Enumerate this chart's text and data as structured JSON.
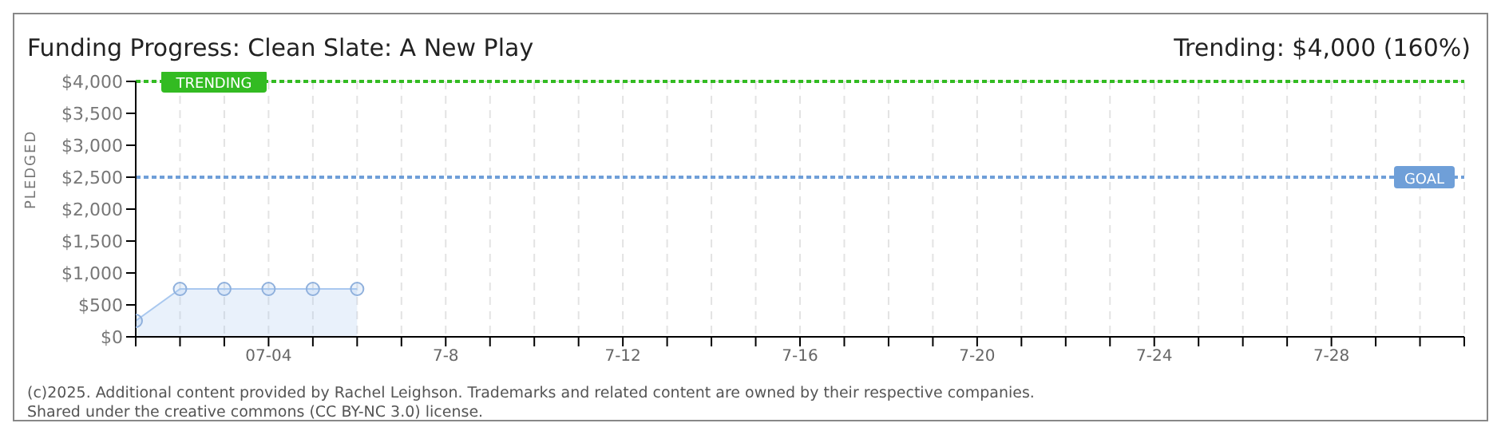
{
  "chart_data": {
    "type": "area",
    "title": "Funding Progress: Clean Slate: A New Play",
    "ylabel": "PLEDGED",
    "annotations": [
      "Trending: $4,000 (160%)",
      "(c)2025. Additional content provided by Rachel Leighson. Trademarks and related content are owned by their respective companies.",
      "Shared under the creative commons (CC BY-NC 3.0) license."
    ],
    "x": [
      "--07-01",
      "--07-02",
      "--07-03",
      "--07-04",
      "--07-05",
      "--07-06"
    ],
    "series": [
      {
        "color": "#a9c8ef",
        "values": [
          250,
          750,
          750,
          750,
          750,
          750
        ]
      }
    ],
    "xlim": [
      "--07-01",
      "--07-31"
    ],
    "xticks": [
      {
        "value": "--07-01",
        "label": null
      },
      {
        "value": "--07-02",
        "label": null
      },
      {
        "value": "--07-03",
        "label": null
      },
      {
        "value": "--07-04",
        "label": "07-04"
      },
      {
        "value": "--07-05",
        "label": null
      },
      {
        "value": "--07-06",
        "label": null
      },
      {
        "value": "--07-07",
        "label": null
      },
      {
        "value": "--07-08",
        "label": "7-8"
      },
      {
        "value": "--07-09",
        "label": null
      },
      {
        "value": "--07-10",
        "label": null
      },
      {
        "value": "--07-11",
        "label": null
      },
      {
        "value": "--07-12",
        "label": "7-12"
      },
      {
        "value": "--07-13",
        "label": null
      },
      {
        "value": "--07-14",
        "label": null
      },
      {
        "value": "--07-15",
        "label": null
      },
      {
        "value": "--07-16",
        "label": "7-16"
      },
      {
        "value": "--07-17",
        "label": null
      },
      {
        "value": "--07-18",
        "label": null
      },
      {
        "value": "--07-19",
        "label": null
      },
      {
        "value": "--07-20",
        "label": "7-20"
      },
      {
        "value": "--07-21",
        "label": null
      },
      {
        "value": "--07-22",
        "label": null
      },
      {
        "value": "--07-23",
        "label": null
      },
      {
        "value": "--07-24",
        "label": "7-24"
      },
      {
        "value": "--07-25",
        "label": null
      },
      {
        "value": "--07-26",
        "label": null
      },
      {
        "value": "--07-27",
        "label": null
      },
      {
        "value": "--07-28",
        "label": "7-28"
      },
      {
        "value": "--07-29",
        "label": null
      },
      {
        "value": "--07-30",
        "label": null
      },
      {
        "value": "--07-31",
        "label": null
      }
    ],
    "ylim": [
      0,
      4000
    ],
    "yticks": [
      {
        "value": 0,
        "label": "$0"
      },
      {
        "value": 500,
        "label": "$500"
      },
      {
        "value": 1000,
        "label": "$1,000"
      },
      {
        "value": 1500,
        "label": "$1,500"
      },
      {
        "value": 2000,
        "label": "$2,000"
      },
      {
        "value": 2500,
        "label": "$2,500"
      },
      {
        "value": 3000,
        "label": "$3,000"
      },
      {
        "value": 3500,
        "label": "$3,500"
      },
      {
        "value": 4000,
        "label": "$4,000"
      }
    ],
    "ref_lines": [
      {
        "axis": "y",
        "value": 4000,
        "label": "TRENDING",
        "color": "#33bb22",
        "line_style": "dotted"
      },
      {
        "axis": "y",
        "value": 2500,
        "label": "GOAL",
        "color": "#6f9fd8",
        "line_style": "dotted"
      }
    ],
    "grid": true,
    "marker": "circle",
    "legend": false
  }
}
